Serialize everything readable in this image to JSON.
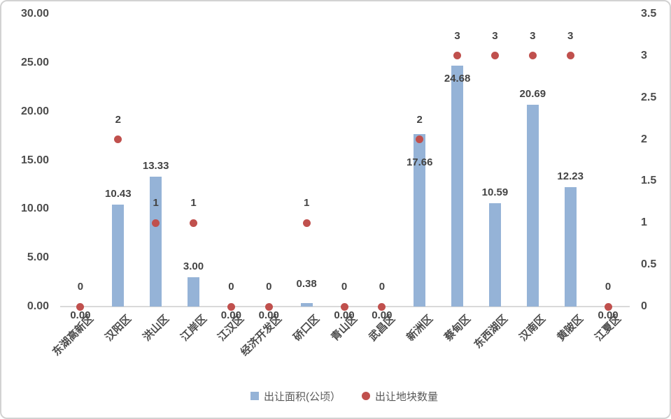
{
  "chart_data": {
    "type": "combo(bar+scatter)",
    "categories": [
      "东湖高新区",
      "汉阳区",
      "洪山区",
      "江岸区",
      "江汉区",
      "经济开发区",
      "硚口区",
      "青山区",
      "武昌区",
      "新洲区",
      "蔡甸区",
      "东西湖区",
      "汉南区",
      "黄陂区",
      "江夏区"
    ],
    "series": [
      {
        "name": "出让面积(公顷）",
        "type": "bar",
        "axis": "left",
        "color": "#95b3d7",
        "values": [
          0.0,
          10.43,
          13.33,
          3.0,
          0.0,
          0.0,
          0.38,
          0.0,
          0.0,
          17.66,
          24.68,
          10.59,
          20.69,
          12.23,
          0.0
        ],
        "labels": [
          "0.00",
          "10.43",
          "13.33",
          "3.00",
          "0.00",
          "0.00",
          "0.38",
          "0.00",
          "0.00",
          "17.66",
          "24.68",
          "10.59",
          "20.69",
          "12.23",
          "0.00"
        ]
      },
      {
        "name": "出让地块数量",
        "type": "scatter",
        "axis": "right",
        "color": "#c0504d",
        "values": [
          0,
          2,
          1,
          1,
          0,
          0,
          1,
          0,
          0,
          2,
          3,
          3,
          3,
          3,
          0
        ],
        "labels": [
          "0",
          "2",
          "1",
          "1",
          "0",
          "0",
          "1",
          "0",
          "0",
          "2",
          "3",
          "3",
          "3",
          "3",
          "0"
        ]
      }
    ],
    "left_axis": {
      "min": 0,
      "max": 30,
      "ticks": [
        30,
        25,
        20,
        15,
        10,
        5,
        0
      ],
      "tick_labels": [
        "30.00",
        "25.00",
        "20.00",
        "15.00",
        "10.00",
        "5.00",
        "0.00"
      ]
    },
    "right_axis": {
      "min": 0,
      "max": 3.5,
      "ticks": [
        3.5,
        3,
        2.5,
        2,
        1.5,
        1,
        0.5,
        0
      ],
      "tick_labels": [
        "3.5",
        "3",
        "2.5",
        "2",
        "1.5",
        "1",
        "0.5",
        "0"
      ]
    },
    "grid": "off",
    "legend_position": "bottom-center",
    "legend": [
      {
        "label": "出让面积(公顷）",
        "marker": "square",
        "color": "#95b3d7"
      },
      {
        "label": "出让地块数量",
        "marker": "circle",
        "color": "#c0504d"
      }
    ],
    "colors": {
      "bar": "#95b3d7",
      "dot": "#c0504d",
      "axis_text": "#4d4d4d",
      "data_label_text": "#444444",
      "legend_text": "#595959",
      "axis_line": "#d9d9d9",
      "border": "#d2d2d2"
    }
  }
}
